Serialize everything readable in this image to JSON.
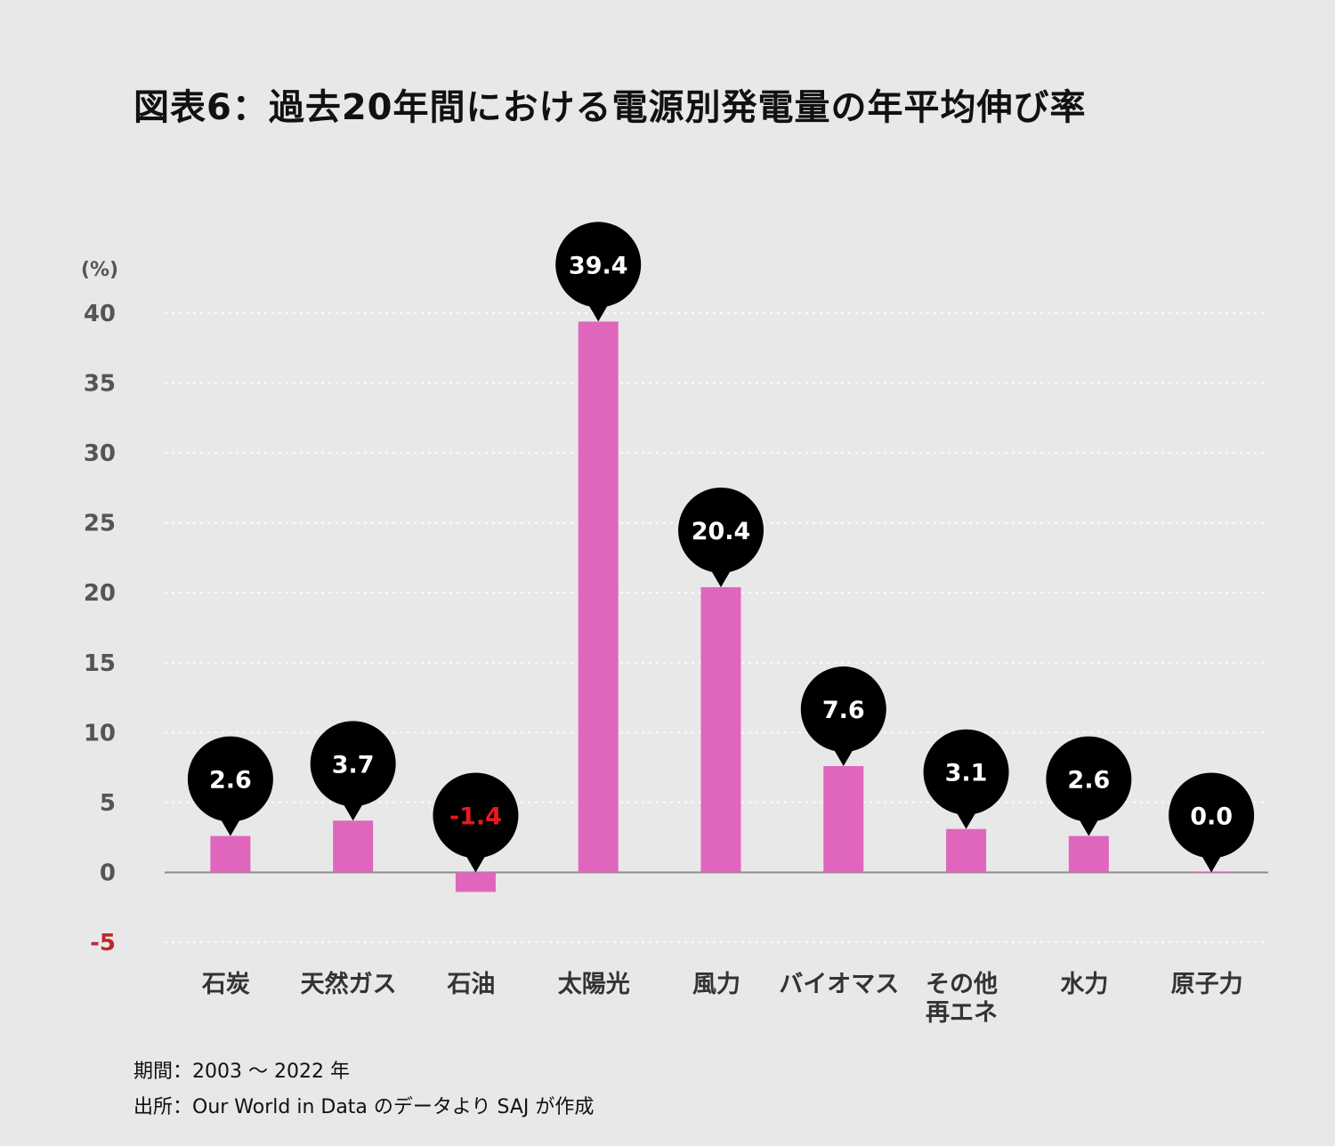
{
  "chart_data": {
    "type": "bar",
    "title": "図表6：過去20年間における電源別発電量の年平均伸び率",
    "y_unit": "(%)",
    "ylim": [
      -5,
      40
    ],
    "yticks": [
      40,
      35,
      30,
      25,
      20,
      15,
      10,
      5,
      0,
      -5
    ],
    "grid": "horizontal dotted",
    "categories": [
      "石炭",
      "天然ガス",
      "石油",
      "太陽光",
      "風力",
      "バイオマス",
      "その他\n再エネ",
      "水力",
      "原子力"
    ],
    "values": [
      2.6,
      3.7,
      -1.4,
      39.4,
      20.4,
      7.6,
      3.1,
      2.6,
      0.0
    ],
    "value_labels": [
      "2.6",
      "3.7",
      "-1.4",
      "39.4",
      "20.4",
      "7.6",
      "3.1",
      "2.6",
      "0.0"
    ],
    "colors": {
      "bar": "#e066bd",
      "marker": "#000000",
      "marker_text": "#ffffff",
      "negative_text": "#e8191f",
      "negative_tick": "#c0272d",
      "tick_text": "#555555"
    }
  },
  "notes": {
    "period": "期間：2003 〜 2022 年",
    "source": "出所：Our World in Data のデータより SAJ が作成"
  }
}
